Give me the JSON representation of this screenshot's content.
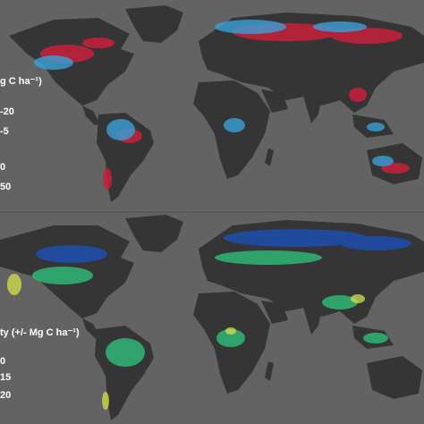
{
  "panel_top": {
    "legend": {
      "title": "g C ha⁻¹)",
      "items": [
        "-20",
        "-5",
        "0",
        "50"
      ]
    },
    "colors": {
      "background": "#636363",
      "land": "#353535",
      "loss": "#c8203a",
      "gain": "#3aa0d8"
    }
  },
  "panel_bottom": {
    "legend": {
      "title": "ty (+/- Mg C ha⁻¹)",
      "items": [
        "0",
        "15",
        "20"
      ]
    },
    "colors": {
      "background": "#636363",
      "land": "#353535",
      "low": "#1d4fb0",
      "mid": "#2fbf7a",
      "high": "#d6e24a"
    }
  }
}
